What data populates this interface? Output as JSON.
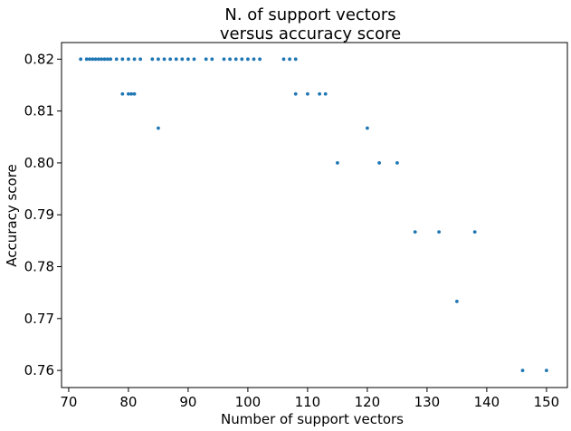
{
  "chart_data": {
    "type": "scatter",
    "title_line1": "N. of support vectors",
    "title_line2": "versus accuracy score",
    "xlabel": "Number of support vectors",
    "ylabel": "Accuracy score",
    "xlim": [
      68.8,
      153.5
    ],
    "ylim": [
      0.7567,
      0.8232
    ],
    "xticks": [
      70,
      80,
      90,
      100,
      110,
      120,
      130,
      140,
      150
    ],
    "xtick_labels": [
      "70",
      "80",
      "90",
      "100",
      "110",
      "120",
      "130",
      "140",
      "150"
    ],
    "yticks": [
      0.76,
      0.77,
      0.78,
      0.79,
      0.8,
      0.81,
      0.82
    ],
    "ytick_labels": [
      "0.76",
      "0.77",
      "0.78",
      "0.79",
      "0.80",
      "0.81",
      "0.82"
    ],
    "grid": false,
    "marker_color": "#1f77b4",
    "points": [
      {
        "x": 72,
        "y": 0.82
      },
      {
        "x": 73,
        "y": 0.82
      },
      {
        "x": 73.5,
        "y": 0.82
      },
      {
        "x": 74,
        "y": 0.82
      },
      {
        "x": 74.5,
        "y": 0.82
      },
      {
        "x": 75,
        "y": 0.82
      },
      {
        "x": 75.5,
        "y": 0.82
      },
      {
        "x": 76,
        "y": 0.82
      },
      {
        "x": 76.5,
        "y": 0.82
      },
      {
        "x": 77,
        "y": 0.82
      },
      {
        "x": 78,
        "y": 0.82
      },
      {
        "x": 79,
        "y": 0.82
      },
      {
        "x": 80,
        "y": 0.82
      },
      {
        "x": 81,
        "y": 0.82
      },
      {
        "x": 82,
        "y": 0.82
      },
      {
        "x": 84,
        "y": 0.82
      },
      {
        "x": 85,
        "y": 0.82
      },
      {
        "x": 86,
        "y": 0.82
      },
      {
        "x": 87,
        "y": 0.82
      },
      {
        "x": 88,
        "y": 0.82
      },
      {
        "x": 89,
        "y": 0.82
      },
      {
        "x": 90,
        "y": 0.82
      },
      {
        "x": 91,
        "y": 0.82
      },
      {
        "x": 93,
        "y": 0.82
      },
      {
        "x": 94,
        "y": 0.82
      },
      {
        "x": 96,
        "y": 0.82
      },
      {
        "x": 97,
        "y": 0.82
      },
      {
        "x": 98,
        "y": 0.82
      },
      {
        "x": 99,
        "y": 0.82
      },
      {
        "x": 100,
        "y": 0.82
      },
      {
        "x": 101,
        "y": 0.82
      },
      {
        "x": 102,
        "y": 0.82
      },
      {
        "x": 106,
        "y": 0.82
      },
      {
        "x": 107,
        "y": 0.82
      },
      {
        "x": 108,
        "y": 0.82
      },
      {
        "x": 79,
        "y": 0.8133
      },
      {
        "x": 80,
        "y": 0.8133
      },
      {
        "x": 80.5,
        "y": 0.8133
      },
      {
        "x": 81,
        "y": 0.8133
      },
      {
        "x": 108,
        "y": 0.8133
      },
      {
        "x": 110,
        "y": 0.8133
      },
      {
        "x": 112,
        "y": 0.8133
      },
      {
        "x": 113,
        "y": 0.8133
      },
      {
        "x": 85,
        "y": 0.8067
      },
      {
        "x": 120,
        "y": 0.8067
      },
      {
        "x": 115,
        "y": 0.8
      },
      {
        "x": 122,
        "y": 0.8
      },
      {
        "x": 125,
        "y": 0.8
      },
      {
        "x": 128,
        "y": 0.7867
      },
      {
        "x": 132,
        "y": 0.7867
      },
      {
        "x": 138,
        "y": 0.7867
      },
      {
        "x": 135,
        "y": 0.7733
      },
      {
        "x": 146,
        "y": 0.76
      },
      {
        "x": 150,
        "y": 0.76
      }
    ]
  }
}
